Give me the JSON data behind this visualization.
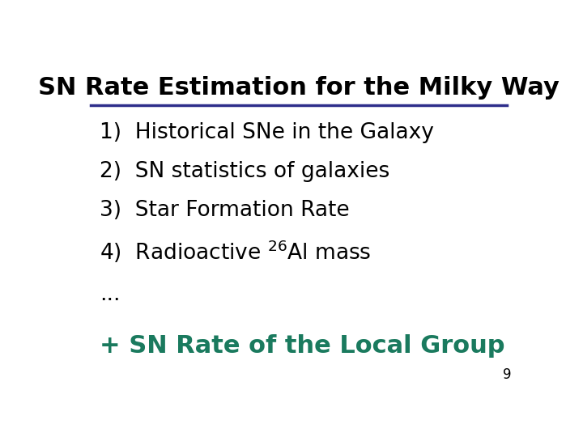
{
  "title": "SN Rate Estimation for the Milky Way",
  "title_color": "#000000",
  "title_fontsize": 22,
  "underline_color": "#2e2e8b",
  "plain_items": [
    "1)  Historical SNe in the Galaxy",
    "2)  SN statistics of galaxies",
    "3)  Star Formation Rate"
  ],
  "item4": "4)  Radioactive $^{26}$Al mass",
  "item_fontsize": 19,
  "item_color": "#000000",
  "ellipsis": "...",
  "ellipsis_fontsize": 19,
  "ellipsis_color": "#000000",
  "plus_line": "+ SN Rate of the Local Group",
  "plus_fontsize": 22,
  "plus_color": "#1a7a5e",
  "page_number": "9",
  "page_fontsize": 12,
  "page_color": "#000000",
  "background_color": "#ffffff"
}
